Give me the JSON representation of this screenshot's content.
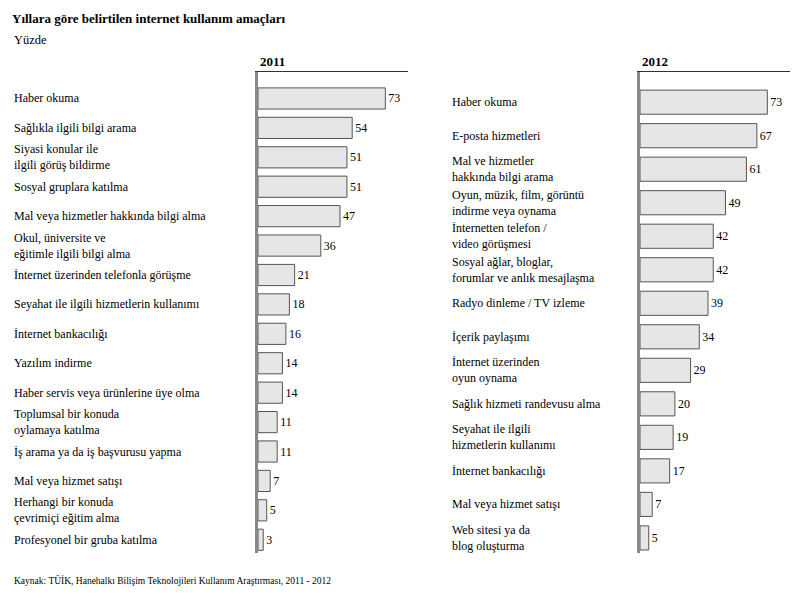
{
  "title": "Yıllara göre belirtilen internet kullanım amaçları",
  "subtitle": "Yüzde",
  "source": "Kaynak: TÜİK, Hanehalkı Bilişim Teknolojileri Kullanım Araştırması, 2011 - 2012",
  "chart_data": [
    {
      "type": "bar",
      "title": "2011",
      "orientation": "horizontal",
      "data_labels": true,
      "tick_labels": "y",
      "grid": false,
      "color": "#e6e6e6",
      "xlim": [
        0,
        86
      ],
      "xticks": [],
      "categories": [
        "Haber okuma",
        "Sağlıkla ilgili bilgi arama",
        "Siyasi konular ile\nilgili görüş bildirme",
        "Sosyal gruplara katılma",
        "Mal veya hizmetler hakkında bilgi alma",
        "Okul, üniversite ve\neğitimle ilgili bilgi alma",
        "İnternet üzerinden telefonla görüşme",
        "Seyahat ile ilgili hizmetlerin kullanımı",
        "İnternet bankacılığı",
        "Yazılım indirme",
        "Haber servis veya ürünlerine üye olma",
        "Toplumsal bir konuda\noylamaya katılma",
        "İş arama ya da iş başvurusu yapma",
        "Mal veya hizmet satışı",
        "Herhangi bir konuda\nçevrimiçi eğitim alma",
        "Profesyonel bir gruba katılma"
      ],
      "values": [
        73,
        54,
        51,
        51,
        47,
        36,
        21,
        18,
        16,
        14,
        14,
        11,
        11,
        7,
        5,
        3
      ]
    },
    {
      "type": "bar",
      "title": "2012",
      "orientation": "horizontal",
      "data_labels": true,
      "tick_labels": "y",
      "grid": false,
      "color": "#e6e6e6",
      "xlim": [
        0,
        86
      ],
      "xticks": [],
      "categories": [
        "Haber okuma",
        "E-posta hizmetleri",
        "Mal ve hizmetler\nhakkında bilgi arama",
        "Oyun, müzik, film, görüntü\nindirme veya oynama",
        "İnternetten telefon /\nvideo görüşmesi",
        "Sosyal ağlar, bloglar,\nforumlar ve anlık mesajlaşma",
        "Radyo dinleme / TV izleme",
        "İçerik paylaşımı",
        "İnternet üzerinden\noyun oynama",
        "Sağlık hizmeti randevusu alma",
        "Seyahat ile ilgili\nhizmetlerin kullanımı",
        "İnternet bankacılığı",
        "Mal veya hizmet satışı",
        "Web sitesi ya da\nblog oluşturma"
      ],
      "values": [
        73,
        67,
        61,
        49,
        42,
        42,
        39,
        34,
        29,
        20,
        19,
        17,
        7,
        5
      ]
    }
  ]
}
